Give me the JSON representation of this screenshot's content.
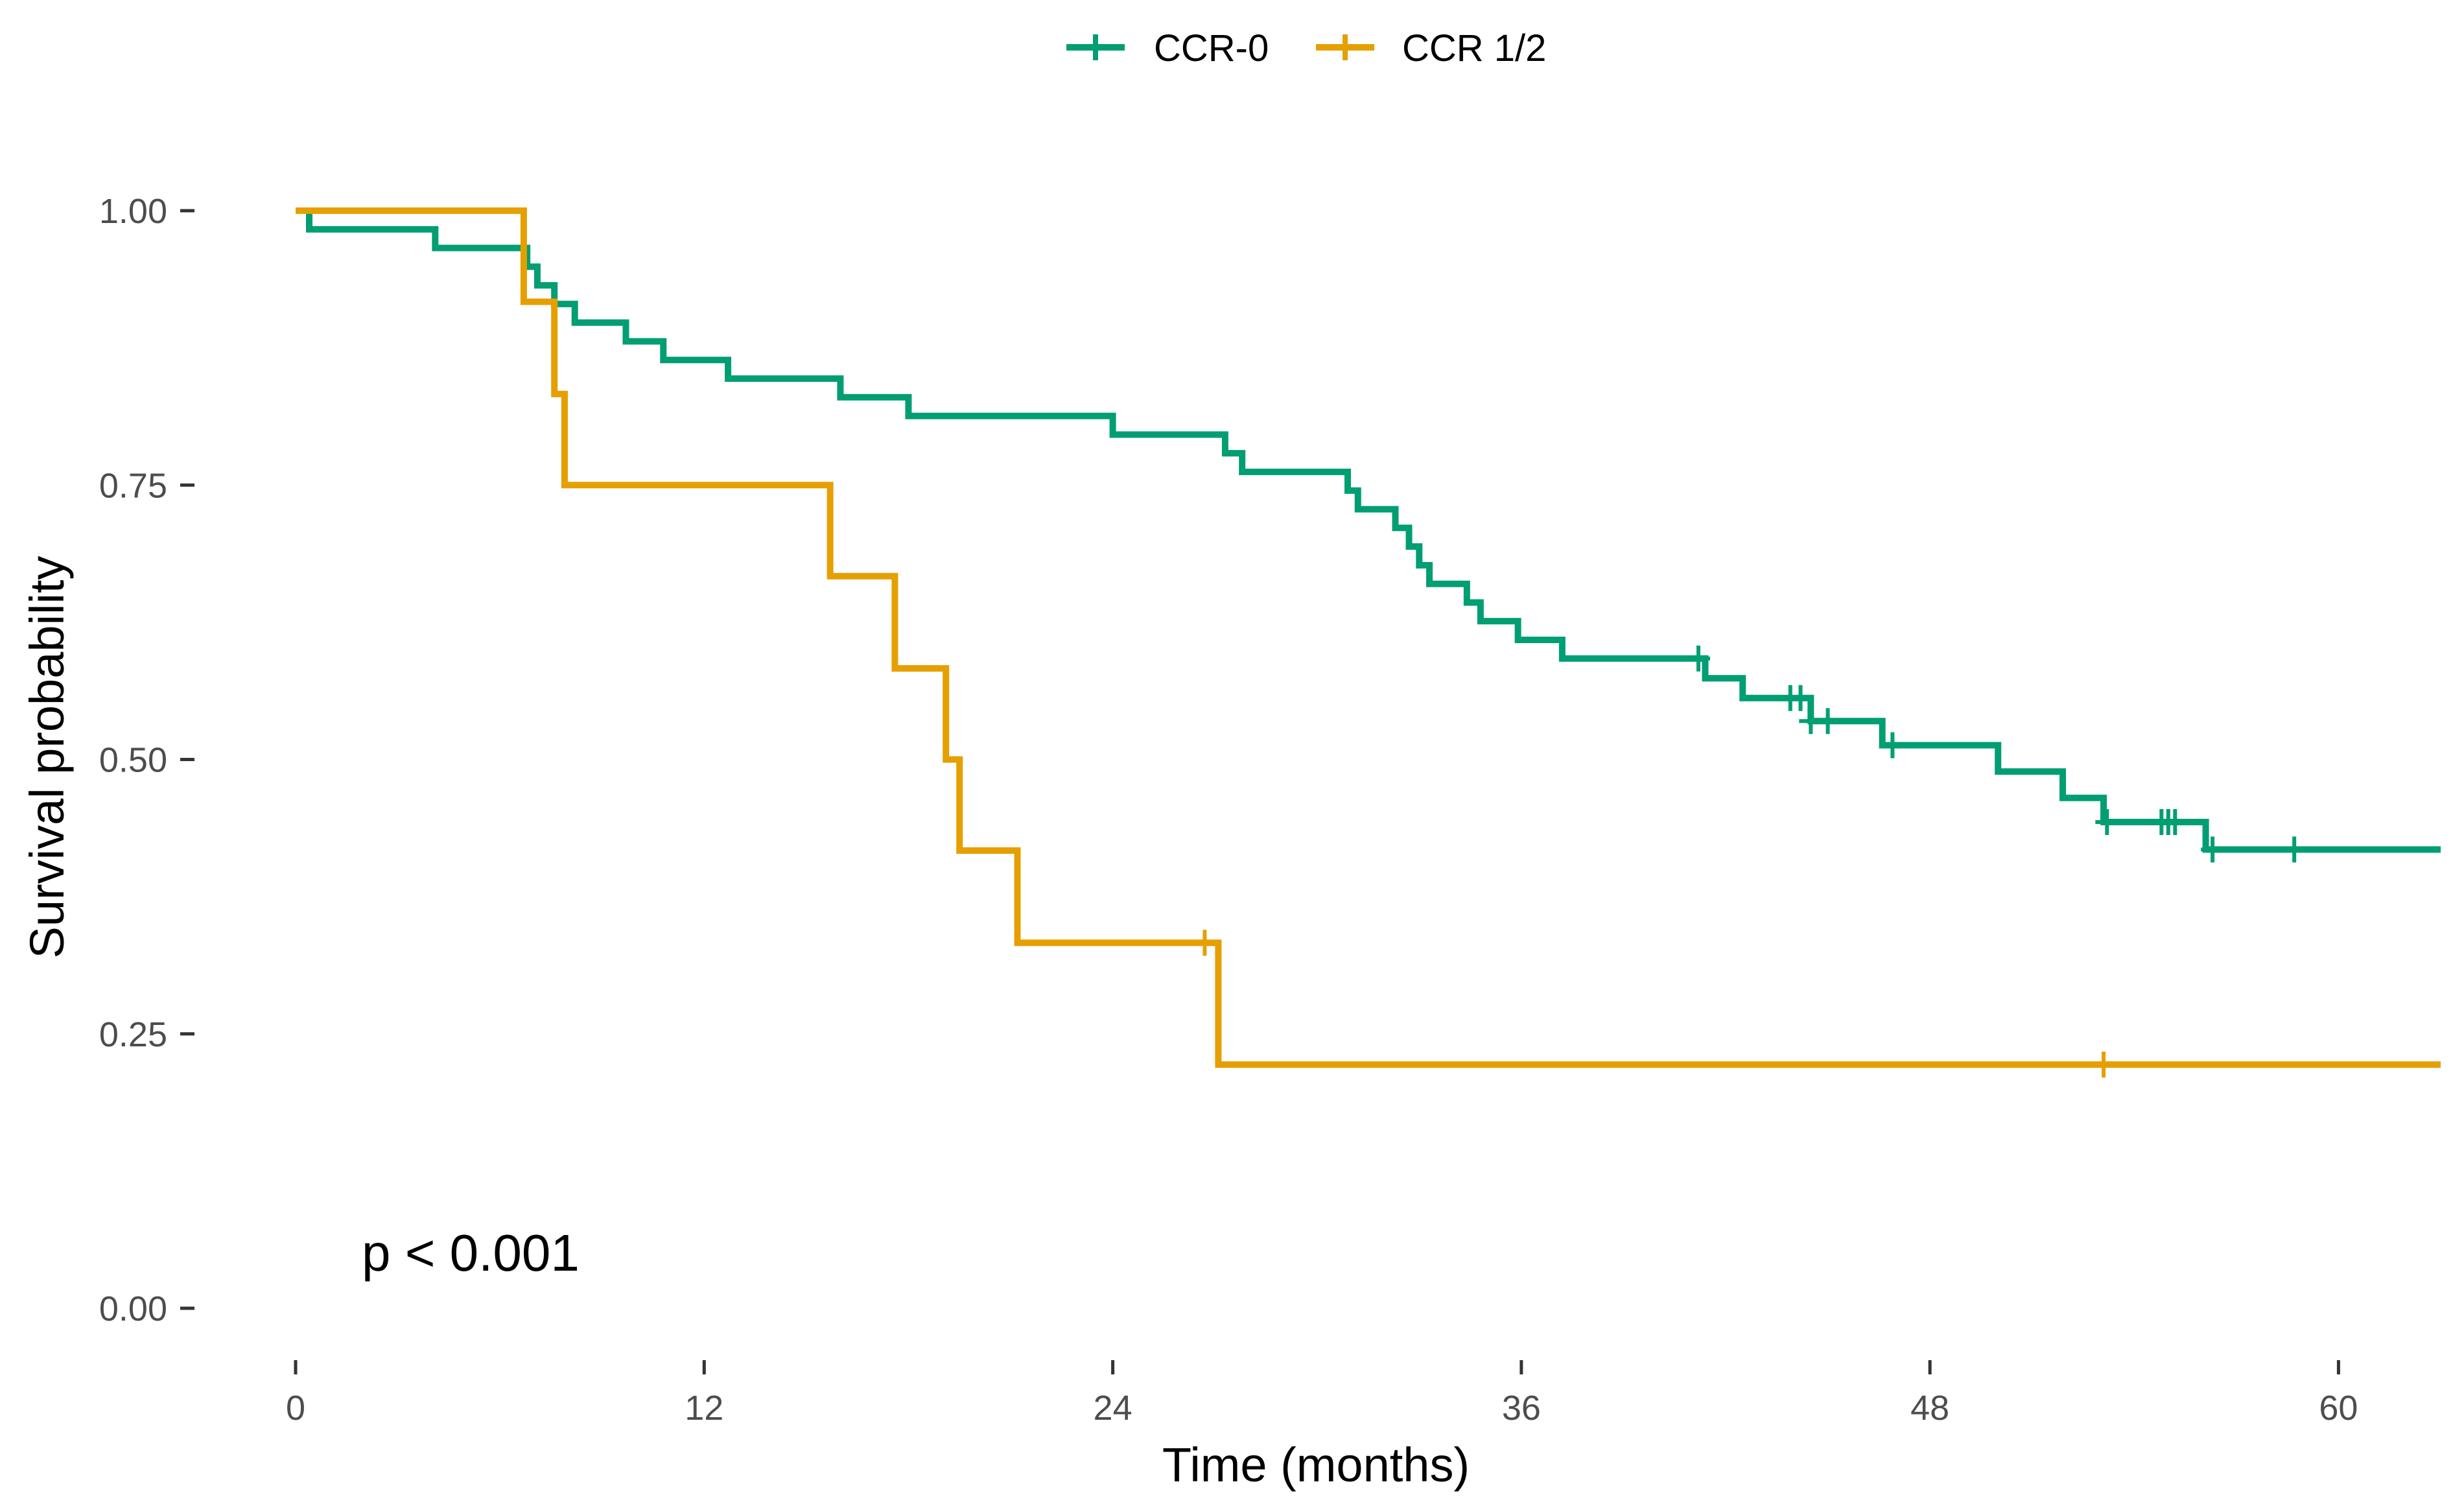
{
  "chart_data": {
    "type": "line",
    "subtype": "kaplan-meier step",
    "xlabel": "Time (months)",
    "ylabel": "Survival probability",
    "xlim": [
      0,
      63
    ],
    "ylim": [
      0,
      1
    ],
    "xticks": [
      0,
      12,
      24,
      36,
      48,
      60
    ],
    "xtick_labels": [
      "0",
      "12",
      "24",
      "36",
      "48",
      "60"
    ],
    "yticks": [
      0,
      0.25,
      0.5,
      0.75,
      1.0
    ],
    "ytick_labels": [
      "0.00",
      "0.25",
      "0.50",
      "0.75",
      "1.00"
    ],
    "grid": false,
    "legend_position": "top",
    "annotation": "p < 0.001",
    "series": [
      {
        "name": "CCR-0",
        "color": "#009E73",
        "steps": [
          [
            0,
            1.0
          ],
          [
            0.4,
            0.983
          ],
          [
            4.1,
            0.966
          ],
          [
            6.8,
            0.949
          ],
          [
            7.1,
            0.932
          ],
          [
            7.6,
            0.915
          ],
          [
            8.2,
            0.898
          ],
          [
            9.7,
            0.881
          ],
          [
            10.8,
            0.864
          ],
          [
            12.7,
            0.847
          ],
          [
            16.0,
            0.83
          ],
          [
            18.0,
            0.813
          ],
          [
            24.0,
            0.796
          ],
          [
            27.3,
            0.779
          ],
          [
            27.8,
            0.762
          ],
          [
            30.9,
            0.745
          ],
          [
            31.2,
            0.728
          ],
          [
            32.3,
            0.711
          ],
          [
            32.7,
            0.694
          ],
          [
            33.0,
            0.677
          ],
          [
            33.3,
            0.66
          ],
          [
            34.4,
            0.643
          ],
          [
            34.8,
            0.626
          ],
          [
            35.9,
            0.609
          ],
          [
            37.2,
            0.592
          ],
          [
            41.4,
            0.574
          ],
          [
            42.5,
            0.556
          ],
          [
            44.5,
            0.535
          ],
          [
            46.6,
            0.513
          ],
          [
            50.0,
            0.489
          ],
          [
            51.9,
            0.465
          ],
          [
            53.1,
            0.443
          ],
          [
            56.1,
            0.418
          ]
        ],
        "end_x": 63,
        "censor_x": [
          41.2,
          43.9,
          44.2,
          44.5,
          45.0,
          46.9,
          53.2,
          54.8,
          55.0,
          55.2,
          56.3,
          58.7
        ]
      },
      {
        "name": "CCR 1/2",
        "color": "#E69F00",
        "steps": [
          [
            0,
            1.0
          ],
          [
            6.7,
            0.917
          ],
          [
            7.6,
            0.833
          ],
          [
            7.9,
            0.75
          ],
          [
            15.7,
            0.667
          ],
          [
            17.6,
            0.583
          ],
          [
            19.1,
            0.5
          ],
          [
            19.5,
            0.417
          ],
          [
            21.2,
            0.333
          ],
          [
            27.1,
            0.222
          ]
        ],
        "end_x": 63,
        "censor_x": [
          26.7,
          53.1
        ]
      }
    ]
  }
}
